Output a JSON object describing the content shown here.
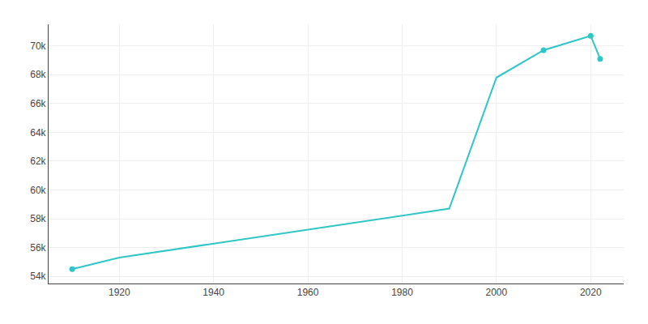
{
  "chart_data": {
    "type": "line",
    "x": [
      1910,
      1920,
      1990,
      2000,
      2010,
      2020,
      2022
    ],
    "series": [
      {
        "type": "line",
        "color": "#2EC6C6",
        "values": [
          54500,
          55300,
          58700,
          67800,
          69700,
          70700,
          69100
        ]
      },
      {
        "type": "scatter",
        "color": "#2EC6C6",
        "marker": "circle",
        "values": [
          54500,
          null,
          null,
          null,
          69700,
          70700,
          69100
        ]
      }
    ],
    "xlim": [
      1905,
      2027
    ],
    "xticks": [
      1920,
      1940,
      1960,
      1980,
      2000,
      2020
    ],
    "ylim": [
      53500,
      71500
    ],
    "yticks": [
      {
        "value": 54000,
        "label": "54k"
      },
      {
        "value": 56000,
        "label": "56k"
      },
      {
        "value": 58000,
        "label": "58k"
      },
      {
        "value": 60000,
        "label": "60k"
      },
      {
        "value": 62000,
        "label": "62k"
      },
      {
        "value": 64000,
        "label": "64k"
      },
      {
        "value": 66000,
        "label": "66k"
      },
      {
        "value": 68000,
        "label": "68k"
      },
      {
        "value": 70000,
        "label": "70k"
      }
    ],
    "grid": true
  }
}
